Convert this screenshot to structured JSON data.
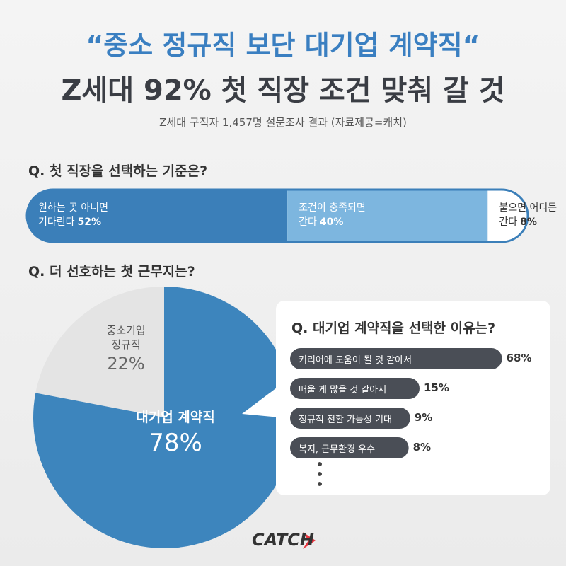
{
  "header": {
    "title_lines": [
      "“중소 정규직 보단 대기업 계약직“",
      "Z세대 92% 첫 직장 조건 맞춰 갈 것"
    ],
    "subtitle": "Z세대 구직자 1,457명 설문조사 결과 (자료제공=캐치)"
  },
  "chart_data": [
    {
      "type": "stacked-bar",
      "title": "Q. 첫 직장을 선택하는 기준은?",
      "categories": [
        "원하는 곳 아니면\n기다린다",
        "조건이 충족되면\n간다",
        "붙으면 어디든\n간다"
      ],
      "values": [
        52,
        40,
        8
      ],
      "value_labels": [
        "52%",
        "40%",
        "8%"
      ],
      "colors": [
        "#3b7fb9",
        "#7db6df",
        "#ffffff"
      ]
    },
    {
      "type": "pie",
      "title": "Q. 더 선호하는 첫 근무지는?",
      "categories": [
        "중소기업\n정규직",
        "대기업 계약직"
      ],
      "values": [
        22,
        78
      ],
      "value_labels": [
        "22%",
        "78%"
      ],
      "colors": [
        "#e4e4e4",
        "#3d85bd"
      ]
    },
    {
      "type": "bar",
      "title": "Q. 대기업 계약직을 선택한 이유는?",
      "categories": [
        "커리어에 도움이 될 것 같아서",
        "배울 게 많을 것 같아서",
        "정규직 전환 가능성 기대",
        "복지, 근무환경 우수"
      ],
      "values": [
        68,
        15,
        9,
        8
      ],
      "value_labels": [
        "68%",
        "15%",
        "9%",
        "8%"
      ],
      "color": "#4a4e56"
    }
  ],
  "footer": {
    "logo": "CATCH"
  }
}
